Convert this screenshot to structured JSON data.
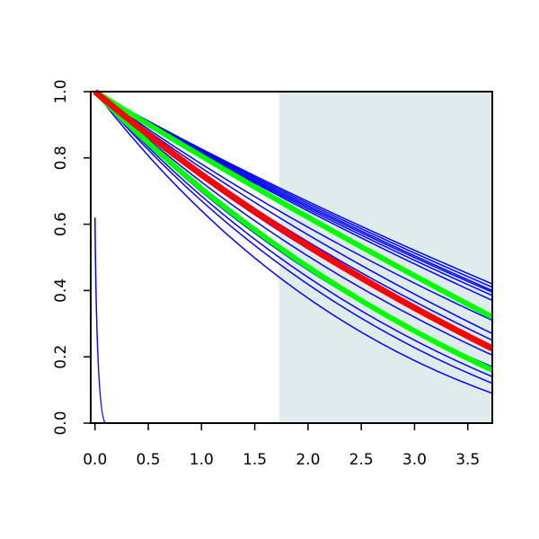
{
  "chart_data": {
    "type": "line",
    "title": "",
    "xlabel": "",
    "ylabel": "",
    "xlim": [
      -0.04,
      3.73
    ],
    "ylim": [
      0,
      1
    ],
    "grid": false,
    "x_ticks": [
      "0.0",
      "0.5",
      "1.0",
      "1.5",
      "2.0",
      "2.5",
      "3.0",
      "3.5"
    ],
    "y_ticks": [
      "0.0",
      "0.2",
      "0.4",
      "0.6",
      "0.8",
      "1.0"
    ],
    "shaded_region": {
      "x_start": 1.73,
      "x_end": 3.73,
      "color": "#e0ecec"
    },
    "series": [
      {
        "color": "#0000ff",
        "width": 1.5,
        "x": [
          0,
          0.05,
          0.1
        ],
        "y": [
          0.62,
          0.01,
          0.0
        ],
        "x_end": 3.73
      },
      {
        "color": "#0000ff",
        "width": 1.5,
        "x": [
          0,
          1.73,
          3.73
        ],
        "y": [
          1.0,
          0.71,
          0.42
        ]
      },
      {
        "color": "#0000ff",
        "width": 1.5,
        "x": [
          0,
          1.73,
          3.73
        ],
        "y": [
          1.0,
          0.705,
          0.41
        ]
      },
      {
        "color": "#0000ff",
        "width": 1.5,
        "x": [
          0,
          1.73,
          3.73
        ],
        "y": [
          1.0,
          0.7,
          0.4
        ]
      },
      {
        "color": "#0000ff",
        "width": 1.5,
        "x": [
          0,
          1.73,
          3.73
        ],
        "y": [
          1.0,
          0.695,
          0.395
        ]
      },
      {
        "color": "#0000ff",
        "width": 1.5,
        "x": [
          0,
          1.73,
          3.73
        ],
        "y": [
          1.0,
          0.69,
          0.385
        ]
      },
      {
        "color": "#0000ff",
        "width": 1.5,
        "x": [
          0,
          1.73,
          3.73
        ],
        "y": [
          1.0,
          0.685,
          0.37
        ]
      },
      {
        "color": "#0000ff",
        "width": 1.5,
        "x": [
          0,
          1.73,
          3.73
        ],
        "y": [
          1.0,
          0.64,
          0.31
        ]
      },
      {
        "color": "#0000ff",
        "width": 1.5,
        "x": [
          0,
          1.73,
          3.73
        ],
        "y": [
          1.0,
          0.62,
          0.27
        ]
      },
      {
        "color": "#0000ff",
        "width": 1.5,
        "x": [
          0,
          1.73,
          3.73
        ],
        "y": [
          1.0,
          0.6,
          0.25
        ]
      },
      {
        "color": "#0000ff",
        "width": 1.5,
        "x": [
          0,
          1.73,
          3.73
        ],
        "y": [
          1.0,
          0.58,
          0.23
        ]
      },
      {
        "color": "#0000ff",
        "width": 1.5,
        "x": [
          0,
          1.73,
          3.73
        ],
        "y": [
          1.0,
          0.56,
          0.205
        ]
      },
      {
        "color": "#0000ff",
        "width": 1.5,
        "x": [
          0,
          1.73,
          3.73
        ],
        "y": [
          1.0,
          0.52,
          0.17
        ]
      },
      {
        "color": "#0000ff",
        "width": 1.5,
        "x": [
          0,
          1.73,
          3.73
        ],
        "y": [
          1.0,
          0.5,
          0.14
        ]
      },
      {
        "color": "#0000ff",
        "width": 1.5,
        "x": [
          0,
          1.73,
          3.73
        ],
        "y": [
          1.0,
          0.48,
          0.12
        ]
      },
      {
        "color": "#0000ff",
        "width": 1.5,
        "x": [
          0,
          1.73,
          3.73
        ],
        "y": [
          1.0,
          0.44,
          0.09
        ]
      },
      {
        "color": "#00ff00",
        "width": 6,
        "x": [
          0,
          1.73,
          3.73
        ],
        "y": [
          1.0,
          0.67,
          0.32
        ]
      },
      {
        "color": "#00ff00",
        "width": 6,
        "x": [
          0,
          1.73,
          3.73
        ],
        "y": [
          1.0,
          0.53,
          0.16
        ]
      },
      {
        "color": "#ff0000",
        "width": 7,
        "x": [
          0,
          1.73,
          3.73
        ],
        "y": [
          1.0,
          0.59,
          0.225
        ]
      }
    ]
  }
}
